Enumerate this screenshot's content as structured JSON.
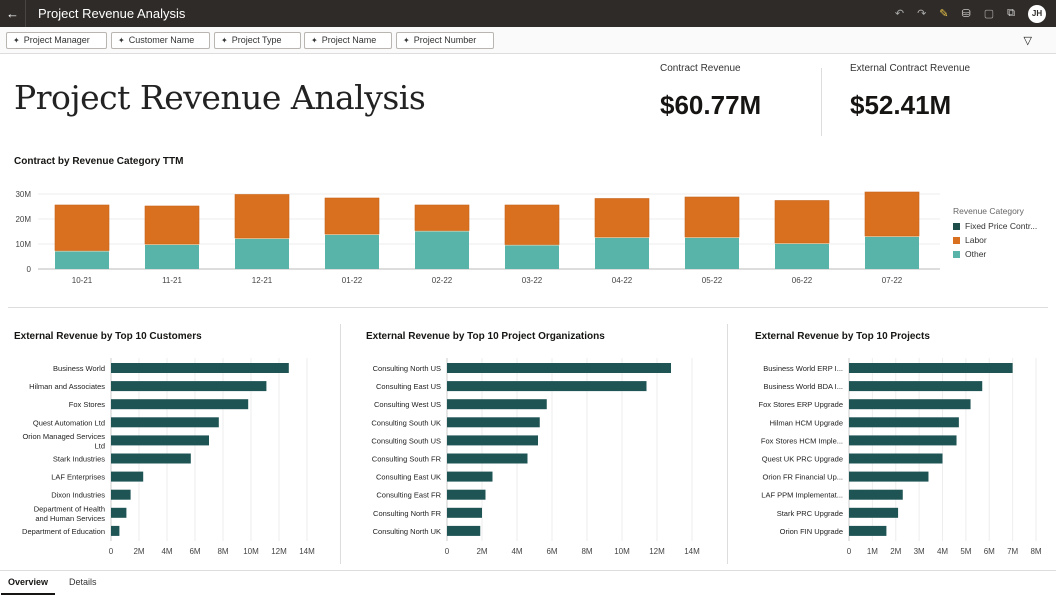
{
  "header": {
    "title": "Project Revenue Analysis",
    "avatar": "JH",
    "icons": [
      "undo-icon",
      "redo-icon",
      "edit-icon",
      "data-icon",
      "comment-icon",
      "present-icon"
    ]
  },
  "filters": [
    "Project Manager",
    "Customer Name",
    "Project Type",
    "Project Name",
    "Project Number"
  ],
  "page_title": "Project Revenue Analysis",
  "kpis": [
    {
      "label": "Contract Revenue",
      "value": "$60.77M"
    },
    {
      "label": "External Contract Revenue",
      "value": "$52.41M"
    }
  ],
  "colors": {
    "fixed": "#1f4d4a",
    "labor": "#d9701f",
    "other": "#58b3a8",
    "bar": "#1f5455"
  },
  "chart_data": [
    {
      "type": "bar",
      "stacked": true,
      "title": "Contract by Revenue Category TTM",
      "categories": [
        "10-21",
        "11-21",
        "12-21",
        "01-22",
        "02-22",
        "03-22",
        "04-22",
        "05-22",
        "06-22",
        "07-22"
      ],
      "ylim": [
        0,
        30
      ],
      "yticks": [
        "0",
        "10M",
        "20M",
        "30M"
      ],
      "grid": true,
      "legend": "right",
      "legend_title": "Revenue Category",
      "series": [
        {
          "name": "Other",
          "values": [
            7.0,
            9.6,
            12.0,
            13.6,
            15.0,
            9.4,
            12.4,
            12.4,
            10.0,
            12.8
          ]
        },
        {
          "name": "Fixed Price Contr...",
          "values": [
            0.4,
            0.4,
            0.4,
            0.4,
            0.4,
            0.4,
            0.4,
            0.4,
            0.4,
            0.4
          ]
        },
        {
          "name": "Labor",
          "values": [
            18.2,
            15.2,
            17.4,
            14.4,
            10.2,
            15.8,
            15.4,
            16.0,
            17.0,
            17.6
          ]
        }
      ]
    },
    {
      "type": "bar",
      "orientation": "horizontal",
      "title": "External Revenue by Top 10 Customers",
      "xlim": [
        0,
        14
      ],
      "xticks": [
        "0",
        "2M",
        "4M",
        "6M",
        "8M",
        "10M",
        "12M",
        "14M"
      ],
      "categories": [
        "Business World",
        "Hilman and Associates",
        "Fox Stores",
        "Quest Automation Ltd",
        "Orion Managed Services Ltd",
        "Stark Industries",
        "LAF Enterprises",
        "Dixon Industries",
        "Department of Health and Human Services",
        "Department of Education"
      ],
      "values": [
        12.7,
        11.1,
        9.8,
        7.7,
        7.0,
        5.7,
        2.3,
        1.4,
        1.1,
        0.6
      ]
    },
    {
      "type": "bar",
      "orientation": "horizontal",
      "title": "External Revenue by Top 10 Project Organizations",
      "xlim": [
        0,
        14
      ],
      "xticks": [
        "0",
        "2M",
        "4M",
        "6M",
        "8M",
        "10M",
        "12M",
        "14M"
      ],
      "categories": [
        "Consulting North US",
        "Consulting East US",
        "Consulting West US",
        "Consulting South UK",
        "Consulting South US",
        "Consulting South FR",
        "Consulting East UK",
        "Consulting East FR",
        "Consulting North FR",
        "Consulting North UK"
      ],
      "values": [
        12.8,
        11.4,
        5.7,
        5.3,
        5.2,
        4.6,
        2.6,
        2.2,
        2.0,
        1.9
      ]
    },
    {
      "type": "bar",
      "orientation": "horizontal",
      "title": "External Revenue by Top 10 Projects",
      "xlim": [
        0,
        8
      ],
      "xticks": [
        "0",
        "1M",
        "2M",
        "3M",
        "4M",
        "5M",
        "6M",
        "7M",
        "8M"
      ],
      "categories": [
        "Business World ERP I...",
        "Business World BDA I...",
        "Fox Stores ERP Upgrade",
        "Hilman HCM Upgrade",
        "Fox Stores HCM Imple...",
        "Quest UK PRC Upgrade",
        "Orion FR Financial Up...",
        "LAF PPM Implementat...",
        "Stark PRC Upgrade",
        "Orion FIN Upgrade"
      ],
      "values": [
        7.0,
        5.7,
        5.2,
        4.7,
        4.6,
        4.0,
        3.4,
        2.3,
        2.1,
        1.6
      ]
    }
  ],
  "tabs": [
    {
      "label": "Overview",
      "active": true
    },
    {
      "label": "Details",
      "active": false
    }
  ]
}
